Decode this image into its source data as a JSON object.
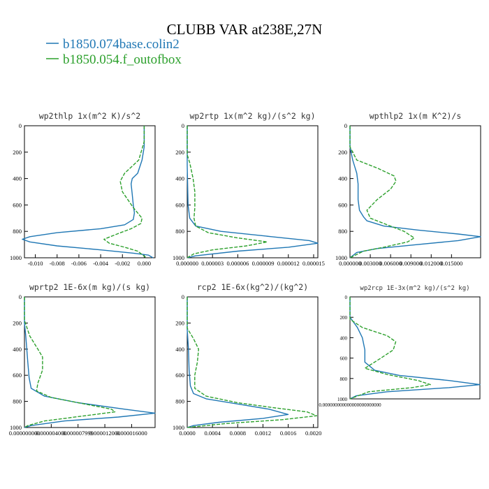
{
  "title": "CLUBB VAR at238E,27N",
  "legend": [
    {
      "name": "b1850.074base.colin2",
      "color": "#1f77b4"
    },
    {
      "name": "b1850.054.f_outofbox",
      "color": "#2ca02c"
    }
  ],
  "chart_data": [
    {
      "type": "line",
      "title": "wp2thlp  1x(m^2 K)/s^2",
      "ylim": [
        1000,
        0
      ],
      "yticks": [
        "0",
        "200",
        "400",
        "600",
        "800",
        "1000"
      ],
      "xlim": [
        -0.011,
        0.001
      ],
      "xticks": [
        {
          "v": -0.01,
          "t": "-0.010"
        },
        {
          "v": -0.008,
          "t": "-0.008"
        },
        {
          "v": -0.006,
          "t": "-0.006"
        },
        {
          "v": -0.004,
          "t": "-0.004"
        },
        {
          "v": -0.002,
          "t": "-0.002"
        },
        {
          "v": 0.0,
          "t": "0.000"
        }
      ],
      "series": [
        {
          "name": "b1850.074base.colin2",
          "color": "#1f77b4",
          "points": [
            [
              0.0,
              0
            ],
            [
              0.0,
              80
            ],
            [
              0.0,
              160
            ],
            [
              -0.0002,
              260
            ],
            [
              -0.0006,
              360
            ],
            [
              -0.0011,
              400
            ],
            [
              -0.0012,
              440
            ],
            [
              -0.0011,
              520
            ],
            [
              -0.001,
              600
            ],
            [
              -0.0009,
              660
            ],
            [
              -0.001,
              710
            ],
            [
              -0.0018,
              750
            ],
            [
              -0.004,
              780
            ],
            [
              -0.008,
              810
            ],
            [
              -0.0105,
              840
            ],
            [
              -0.0112,
              860
            ],
            [
              -0.0105,
              880
            ],
            [
              -0.008,
              910
            ],
            [
              -0.004,
              940
            ],
            [
              -0.001,
              965
            ],
            [
              0.0004,
              980
            ],
            [
              0.0008,
              1000
            ]
          ]
        },
        {
          "name": "b1850.054.f_outofbox",
          "color": "#2ca02c",
          "points": [
            [
              0.0,
              0
            ],
            [
              0.0,
              120
            ],
            [
              -0.0005,
              260
            ],
            [
              -0.0018,
              360
            ],
            [
              -0.0022,
              420
            ],
            [
              -0.002,
              500
            ],
            [
              -0.001,
              620
            ],
            [
              -0.0002,
              700
            ],
            [
              -0.0003,
              740
            ],
            [
              -0.0012,
              780
            ],
            [
              -0.0025,
              820
            ],
            [
              -0.0037,
              860
            ],
            [
              -0.0032,
              890
            ],
            [
              -0.0018,
              920
            ],
            [
              -0.0006,
              950
            ],
            [
              0.0002,
              1000
            ]
          ]
        }
      ]
    },
    {
      "type": "line",
      "title": "wp2rtp  1x(m^2 kg)/(s^2 kg)",
      "ylim": [
        1000,
        0
      ],
      "yticks": [
        "0",
        "200",
        "400",
        "600",
        "800",
        "1000"
      ],
      "xlim": [
        0.0,
        1.55e-05
      ],
      "xticks": [
        {
          "v": 0.0,
          "t": "0.000000"
        },
        {
          "v": 3e-06,
          "t": "0.000003"
        },
        {
          "v": 6e-06,
          "t": "0.000006"
        },
        {
          "v": 9e-06,
          "t": "0.000009"
        },
        {
          "v": 1.2e-05,
          "t": "0.000012"
        },
        {
          "v": 1.5e-05,
          "t": "0.000015"
        }
      ],
      "series": [
        {
          "name": "b1850.074base.colin2",
          "color": "#1f77b4",
          "points": [
            [
              0.0,
              0
            ],
            [
              0.0,
              300
            ],
            [
              1e-07,
              600
            ],
            [
              3e-07,
              700
            ],
            [
              1e-06,
              760
            ],
            [
              4e-06,
              800
            ],
            [
              1e-05,
              840
            ],
            [
              1.45e-05,
              870
            ],
            [
              1.55e-05,
              890
            ],
            [
              1.2e-05,
              920
            ],
            [
              6e-06,
              950
            ],
            [
              1e-06,
              985
            ],
            [
              0.0,
              1000
            ]
          ]
        },
        {
          "name": "b1850.054.f_outofbox",
          "color": "#2ca02c",
          "points": [
            [
              0.0,
              0
            ],
            [
              0.0,
              220
            ],
            [
              3e-07,
              280
            ],
            [
              7e-07,
              400
            ],
            [
              9e-07,
              500
            ],
            [
              9e-07,
              620
            ],
            [
              8e-07,
              700
            ],
            [
              1e-06,
              760
            ],
            [
              2.5e-06,
              810
            ],
            [
              6e-06,
              850
            ],
            [
              9.5e-06,
              880
            ],
            [
              7e-06,
              910
            ],
            [
              3e-06,
              940
            ],
            [
              8e-07,
              970
            ],
            [
              0.0,
              1000
            ]
          ]
        }
      ]
    },
    {
      "type": "line",
      "title": "wpthlp2  1x(m K^2)/s",
      "ylim": [
        1000,
        0
      ],
      "yticks": [
        "0",
        "200",
        "400",
        "600",
        "800",
        "1000"
      ],
      "xlim": [
        0.0,
        0.0193
      ],
      "xticks": [
        {
          "v": 0.0,
          "t": "0.000000"
        },
        {
          "v": 0.003,
          "t": "0.003000"
        },
        {
          "v": 0.006,
          "t": "0.006000"
        },
        {
          "v": 0.009,
          "t": "0.009000"
        },
        {
          "v": 0.012,
          "t": "0.012000"
        },
        {
          "v": 0.015,
          "t": "0.015000"
        }
      ],
      "series": [
        {
          "name": "b1850.074base.colin2",
          "color": "#1f77b4",
          "points": [
            [
              0.0,
              0
            ],
            [
              0.0,
              160
            ],
            [
              0.0004,
              260
            ],
            [
              0.001,
              360
            ],
            [
              0.0012,
              440
            ],
            [
              0.0012,
              560
            ],
            [
              0.0014,
              640
            ],
            [
              0.002,
              690
            ],
            [
              0.0025,
              720
            ],
            [
              0.005,
              760
            ],
            [
              0.01,
              790
            ],
            [
              0.016,
              820
            ],
            [
              0.0193,
              840
            ],
            [
              0.016,
              870
            ],
            [
              0.01,
              900
            ],
            [
              0.004,
              930
            ],
            [
              0.001,
              960
            ],
            [
              0.0,
              1000
            ]
          ]
        },
        {
          "name": "b1850.054.f_outofbox",
          "color": "#2ca02c",
          "points": [
            [
              0.0,
              0
            ],
            [
              0.0,
              160
            ],
            [
              0.001,
              260
            ],
            [
              0.004,
              320
            ],
            [
              0.0065,
              380
            ],
            [
              0.0068,
              420
            ],
            [
              0.006,
              480
            ],
            [
              0.004,
              560
            ],
            [
              0.0025,
              640
            ],
            [
              0.003,
              700
            ],
            [
              0.005,
              740
            ],
            [
              0.008,
              800
            ],
            [
              0.0095,
              850
            ],
            [
              0.0085,
              880
            ],
            [
              0.005,
              920
            ],
            [
              0.002,
              950
            ],
            [
              0.0,
              1000
            ]
          ]
        }
      ]
    },
    {
      "type": "line",
      "title": "wprtp2  1E-6x(m kg)/(s kg)",
      "ylim": [
        1000,
        0
      ],
      "yticks": [
        "0",
        "200",
        "400",
        "600",
        "800",
        "1000"
      ],
      "xlim": [
        0.0,
        1.95e-05
      ],
      "xticks": [
        {
          "v": 0.0,
          "t": "0.000000000"
        },
        {
          "v": 4e-06,
          "t": "0.000004000"
        },
        {
          "v": 8e-06,
          "t": "0.000007999"
        },
        {
          "v": 1.2e-05,
          "t": "0.000012000"
        },
        {
          "v": 1.6e-05,
          "t": "0.000016000"
        }
      ],
      "series": [
        {
          "name": "b1850.074base.colin2",
          "color": "#1f77b4",
          "points": [
            [
              0.0,
              0
            ],
            [
              0.0,
              200
            ],
            [
              2e-07,
              300
            ],
            [
              5e-07,
              500
            ],
            [
              7e-07,
              620
            ],
            [
              1e-06,
              700
            ],
            [
              3e-06,
              760
            ],
            [
              8e-06,
              810
            ],
            [
              1.5e-05,
              860
            ],
            [
              1.95e-05,
              890
            ],
            [
              1.4e-05,
              920
            ],
            [
              6e-06,
              950
            ],
            [
              1e-06,
              985
            ],
            [
              0.0,
              1000
            ]
          ]
        },
        {
          "name": "b1850.054.f_outofbox",
          "color": "#2ca02c",
          "points": [
            [
              0.0,
              0
            ],
            [
              0.0,
              180
            ],
            [
              8e-07,
              300
            ],
            [
              2e-06,
              400
            ],
            [
              2.7e-06,
              460
            ],
            [
              2.7e-06,
              560
            ],
            [
              2e-06,
              660
            ],
            [
              1.8e-06,
              720
            ],
            [
              4e-06,
              770
            ],
            [
              9e-06,
              820
            ],
            [
              1.3e-05,
              860
            ],
            [
              1.35e-05,
              880
            ],
            [
              9e-06,
              910
            ],
            [
              3e-06,
              950
            ],
            [
              5e-07,
              985
            ],
            [
              0.0,
              1000
            ]
          ]
        }
      ]
    },
    {
      "type": "line",
      "title": "rcp2  1E-6x(kg^2)/(kg^2)",
      "ylim": [
        1000,
        0
      ],
      "yticks": [
        "0",
        "200",
        "400",
        "600",
        "800",
        "1000"
      ],
      "xlim": [
        0.0,
        0.00207
      ],
      "xticks": [
        {
          "v": 0.0,
          "t": "0.0000"
        },
        {
          "v": 0.0004,
          "t": "0.0004"
        },
        {
          "v": 0.0008,
          "t": "0.0008"
        },
        {
          "v": 0.0012,
          "t": "0.0012"
        },
        {
          "v": 0.0016,
          "t": "0.0016"
        },
        {
          "v": 0.002,
          "t": "0.0020"
        }
      ],
      "series": [
        {
          "name": "b1850.074base.colin2",
          "color": "#1f77b4",
          "points": [
            [
              0.0,
              0
            ],
            [
              0.0,
              250
            ],
            [
              2e-05,
              400
            ],
            [
              3e-05,
              560
            ],
            [
              5e-05,
              680
            ],
            [
              0.0001,
              740
            ],
            [
              0.0003,
              780
            ],
            [
              0.0008,
              820
            ],
            [
              0.0013,
              860
            ],
            [
              0.0016,
              900
            ],
            [
              0.0012,
              930
            ],
            [
              0.0005,
              960
            ],
            [
              0.0001,
              985
            ],
            [
              0.0,
              1000
            ]
          ]
        },
        {
          "name": "b1850.054.f_outofbox",
          "color": "#2ca02c",
          "points": [
            [
              0.0,
              0
            ],
            [
              0.0,
              240
            ],
            [
              0.0001,
              320
            ],
            [
              0.00018,
              400
            ],
            [
              0.00016,
              500
            ],
            [
              0.00012,
              600
            ],
            [
              0.00012,
              700
            ],
            [
              0.0003,
              760
            ],
            [
              0.0008,
              810
            ],
            [
              0.0014,
              850
            ],
            [
              0.0019,
              880
            ],
            [
              0.00205,
              910
            ],
            [
              0.0015,
              940
            ],
            [
              0.0006,
              970
            ],
            [
              0.0,
              1000
            ]
          ]
        }
      ]
    },
    {
      "type": "line",
      "title": "wp2rcp  1E-3x(m^2 kg)/(s^2 kg)",
      "ylim": [
        1000,
        0
      ],
      "yticks": [
        "0",
        "200",
        "400",
        "600",
        "800",
        "1000"
      ],
      "xlim": [
        0.0,
        1.05e-05
      ],
      "xticks": [
        {
          "v": 0.0,
          "t": "0.000000000000000000000000"
        }
      ],
      "series": [
        {
          "name": "b1850.074base.colin2",
          "color": "#1f77b4",
          "points": [
            [
              0.0,
              0
            ],
            [
              0.0,
              200
            ],
            [
              6e-07,
              300
            ],
            [
              1e-06,
              400
            ],
            [
              1.2e-06,
              520
            ],
            [
              1.2e-06,
              640
            ],
            [
              2e-06,
              720
            ],
            [
              4e-06,
              770
            ],
            [
              8e-06,
              820
            ],
            [
              1.05e-05,
              860
            ],
            [
              8e-06,
              890
            ],
            [
              3e-06,
              930
            ],
            [
              5e-07,
              970
            ],
            [
              0.0,
              1000
            ]
          ]
        },
        {
          "name": "b1850.054.f_outofbox",
          "color": "#2ca02c",
          "points": [
            [
              0.0,
              0
            ],
            [
              0.0,
              220
            ],
            [
              1e-06,
              300
            ],
            [
              3e-06,
              380
            ],
            [
              3.7e-06,
              440
            ],
            [
              3.5e-06,
              520
            ],
            [
              2.5e-06,
              600
            ],
            [
              1.2e-06,
              700
            ],
            [
              3e-06,
              760
            ],
            [
              5.5e-06,
              820
            ],
            [
              6.5e-06,
              860
            ],
            [
              5e-06,
              890
            ],
            [
              1.5e-06,
              930
            ],
            [
              0.0,
              1000
            ]
          ]
        }
      ]
    }
  ]
}
